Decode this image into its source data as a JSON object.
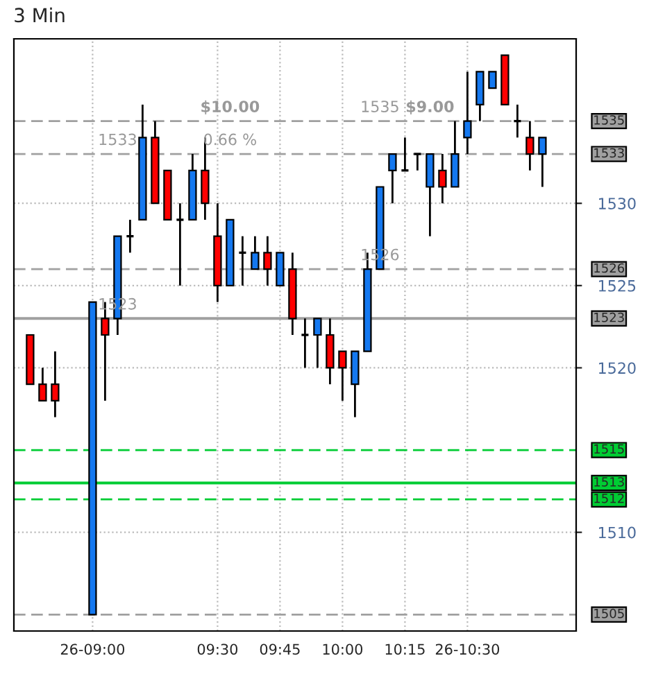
{
  "chart_data": {
    "type": "candlestick",
    "title": "3 Min",
    "x": [
      8.75,
      8.8,
      8.85,
      9.0,
      9.05,
      9.1,
      9.15,
      9.2,
      9.25,
      9.3,
      9.35,
      9.4,
      9.45,
      9.5,
      9.55,
      9.6,
      9.65,
      9.7,
      9.75,
      9.8,
      9.85,
      9.9,
      9.95,
      10.0,
      10.05,
      10.1,
      10.15,
      10.2,
      10.25,
      10.3,
      10.35,
      10.4,
      10.45,
      10.5,
      10.55,
      10.6,
      10.65,
      10.7,
      10.75,
      10.8
    ],
    "ohlc": [
      [
        1522,
        1522,
        1519,
        1519
      ],
      [
        1519,
        1520,
        1518,
        1518
      ],
      [
        1519,
        1521,
        1517,
        1518
      ],
      [
        1505,
        1524,
        1505,
        1524
      ],
      [
        1523,
        1524,
        1518,
        1522
      ],
      [
        1523,
        1528,
        1522,
        1528
      ],
      [
        1528,
        1529,
        1527,
        1528
      ],
      [
        1529,
        1536,
        1529,
        1534
      ],
      [
        1534,
        1535,
        1530,
        1530
      ],
      [
        1532,
        1532,
        1529,
        1529
      ],
      [
        1529,
        1530,
        1525,
        1529
      ],
      [
        1529,
        1533,
        1529,
        1532
      ],
      [
        1532,
        1534,
        1529,
        1530
      ],
      [
        1528,
        1530,
        1524,
        1525
      ],
      [
        1525,
        1529,
        1525,
        1529
      ],
      [
        1527,
        1528,
        1525,
        1527
      ],
      [
        1526,
        1528,
        1526,
        1527
      ],
      [
        1527,
        1528,
        1525,
        1526
      ],
      [
        1525,
        1527,
        1525,
        1527
      ],
      [
        1526,
        1527,
        1522,
        1523
      ],
      [
        1522,
        1523,
        1520,
        1522
      ],
      [
        1522,
        1523,
        1520,
        1523
      ],
      [
        1522,
        1523,
        1519,
        1520
      ],
      [
        1521,
        1521,
        1518,
        1520
      ],
      [
        1519,
        1521,
        1517,
        1521
      ],
      [
        1521,
        1527,
        1521,
        1526
      ],
      [
        1526,
        1531,
        1526,
        1531
      ],
      [
        1532,
        1533,
        1530,
        1533
      ],
      [
        1532,
        1534,
        1532,
        1532
      ],
      [
        1533,
        1533,
        1532,
        1533
      ],
      [
        1531,
        1533,
        1528,
        1533
      ],
      [
        1532,
        1533,
        1530,
        1531
      ],
      [
        1531,
        1535,
        1531,
        1533
      ],
      [
        1534,
        1538,
        1533,
        1535
      ],
      [
        1536,
        1538,
        1535,
        1538
      ],
      [
        1537,
        1538,
        1537,
        1538
      ],
      [
        1539,
        1539,
        1536,
        1536
      ],
      [
        1535,
        1536,
        1534,
        1535
      ],
      [
        1534,
        1535,
        1532,
        1533
      ],
      [
        1533,
        1534,
        1531,
        1534
      ]
    ],
    "colors": [
      "#ff0000",
      "#ff0000",
      "#ff0000",
      "#1478f0",
      "#ff0000",
      "#1478f0",
      "#000000",
      "#1478f0",
      "#ff0000",
      "#ff0000",
      "#000000",
      "#1478f0",
      "#ff0000",
      "#ff0000",
      "#1478f0",
      "#000000",
      "#1478f0",
      "#ff0000",
      "#1478f0",
      "#ff0000",
      "#000000",
      "#1478f0",
      "#ff0000",
      "#ff0000",
      "#1478f0",
      "#1478f0",
      "#1478f0",
      "#1478f0",
      "#000000",
      "#000000",
      "#1478f0",
      "#ff0000",
      "#1478f0",
      "#1478f0",
      "#1478f0",
      "#1478f0",
      "#ff0000",
      "#000000",
      "#ff0000",
      "#1478f0"
    ],
    "xlim": [
      8.685,
      10.935
    ],
    "xticks": [
      {
        "value": 9.0,
        "label": "26-09:00"
      },
      {
        "value": 9.5,
        "label": "09:30"
      },
      {
        "value": 9.75,
        "label": "09:45"
      },
      {
        "value": 10.0,
        "label": "10:00"
      },
      {
        "value": 10.25,
        "label": "10:15"
      },
      {
        "value": 10.5,
        "label": "26-10:30"
      }
    ],
    "ylim": [
      1504,
      1540
    ],
    "yticks": [
      1510,
      1520,
      1525,
      1530
    ],
    "grid": true,
    "ref_lines": [
      {
        "axis": "y",
        "value": 1535,
        "label": "1535",
        "color": "#a0a0a0",
        "line_style": "dashed"
      },
      {
        "axis": "y",
        "value": 1533,
        "label": "1533",
        "color": "#a0a0a0",
        "line_style": "dashed"
      },
      {
        "axis": "y",
        "value": 1526,
        "label": "1526",
        "color": "#a0a0a0",
        "line_style": "dashed"
      },
      {
        "axis": "y",
        "value": 1523,
        "label": "1523",
        "color": "#a0a0a0",
        "line_style": "solid"
      },
      {
        "axis": "y",
        "value": 1515,
        "label": "1515",
        "color": "#00cc33",
        "line_style": "dashed"
      },
      {
        "axis": "y",
        "value": 1513,
        "label": "1513",
        "color": "#00cc33",
        "line_style": "solid"
      },
      {
        "axis": "y",
        "value": 1512,
        "label": "1512",
        "color": "#00cc33",
        "line_style": "dashed"
      },
      {
        "axis": "y",
        "value": 1505,
        "label": "1505",
        "color": "#a0a0a0",
        "line_style": "dashed"
      }
    ],
    "annotations": [
      {
        "text": "$10.00",
        "x": 9.55,
        "y": 1535
      },
      {
        "text": "0.66 %",
        "x": 9.55,
        "y": 1533
      },
      {
        "text": "1533",
        "x": 9.1,
        "y": 1533
      },
      {
        "text": "1523",
        "x": 9.1,
        "y": 1523
      },
      {
        "text": "$9.00",
        "x": 10.35,
        "y": 1535
      },
      {
        "text": "1535",
        "x": 10.15,
        "y": 1535
      },
      {
        "text": "1526",
        "x": 10.15,
        "y": 1526
      }
    ]
  }
}
